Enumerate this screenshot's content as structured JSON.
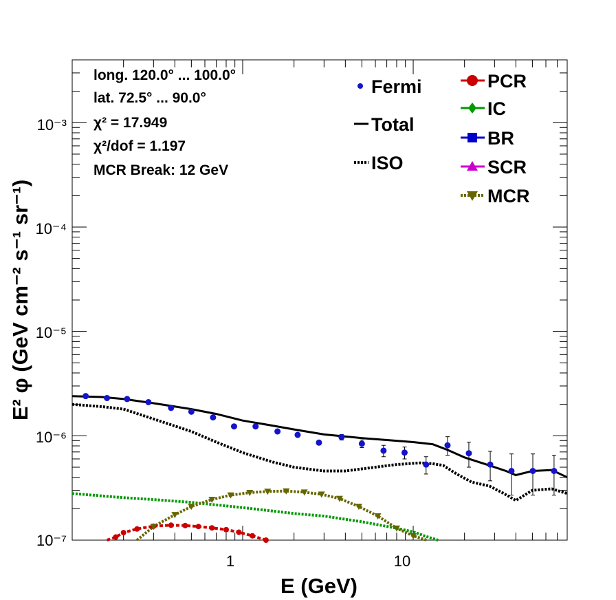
{
  "chart_data": {
    "type": "line",
    "xscale": "log",
    "yscale": "log",
    "xlim": [
      0.1,
      80
    ],
    "ylim": [
      1e-07,
      0.004
    ],
    "xlabel": "E (GeV)",
    "ylabel": "E² φ (GeV cm⁻² s⁻¹ sr⁻¹)",
    "x_tick_labels": [
      "1",
      "10"
    ],
    "y_tick_labels": [
      "10⁻⁷",
      "10⁻⁶",
      "10⁻⁵",
      "10⁻⁴",
      "10⁻³"
    ],
    "info_box": [
      "long. 120.0° ... 100.0°",
      "lat. 72.5° ... 90.0°",
      "χ² = 17.949",
      "χ²/dof = 1.197",
      "MCR Break: 12 GeV"
    ],
    "legend_left": [
      "Fermi",
      "Total",
      "ISO"
    ],
    "legend_right": [
      "PCR",
      "IC",
      "BR",
      "SCR",
      "MCR"
    ],
    "colors": {
      "fermi": "#1414cc",
      "total": "#000000",
      "iso": "#000000",
      "pcr": "#cc0000",
      "ic": "#009900",
      "br": "#0000cc",
      "scr": "#cc00cc",
      "mcr": "#666600"
    },
    "fermi": {
      "x": [
        0.12,
        0.16,
        0.21,
        0.28,
        0.38,
        0.5,
        0.67,
        0.89,
        1.19,
        1.6,
        2.1,
        2.8,
        3.8,
        5.0,
        6.7,
        8.9,
        11.9,
        15.9,
        21.2,
        28.3,
        37.7,
        50.3,
        67.0
      ],
      "y": [
        2.4e-06,
        2.3e-06,
        2.25e-06,
        2.1e-06,
        1.85e-06,
        1.7e-06,
        1.5e-06,
        1.23e-06,
        1.23e-06,
        1.1e-06,
        1.02e-06,
        8.6e-07,
        9.7e-07,
        8.4e-07,
        7.2e-07,
        6.9e-07,
        5.3e-07,
        8.1e-07,
        6.8e-07,
        5.3e-07,
        4.6e-07,
        4.6e-07,
        4.6e-07
      ],
      "err_low": [
        0,
        0,
        0,
        0,
        0,
        0,
        0,
        0,
        0,
        0,
        0,
        4e-08,
        6e-08,
        7e-08,
        9e-08,
        9e-08,
        1e-07,
        1.6e-07,
        1.8e-07,
        1.6e-07,
        1.9e-07,
        1.9e-07,
        1.9e-07
      ],
      "err_high": [
        0,
        0,
        0,
        0,
        0,
        0,
        0,
        0,
        0,
        0,
        0,
        4e-08,
        6e-08,
        7e-08,
        9e-08,
        9e-08,
        1e-07,
        1.7e-07,
        1.9e-07,
        1.8e-07,
        2.1e-07,
        2.1e-07,
        1.9e-07
      ]
    },
    "total": {
      "x": [
        0.1,
        0.15,
        0.2,
        0.3,
        0.5,
        0.7,
        1.0,
        1.5,
        2.0,
        3.0,
        5.0,
        7.0,
        10.0,
        13.0,
        16.0,
        20.0,
        28.0,
        35.0,
        40.0,
        50.0,
        65.0,
        80.0
      ],
      "y": [
        2.4e-06,
        2.35e-06,
        2.25e-06,
        2.05e-06,
        1.8e-06,
        1.62e-06,
        1.4e-06,
        1.25e-06,
        1.15e-06,
        1.03e-06,
        9.5e-07,
        9.1e-07,
        8.7e-07,
        8.3e-07,
        7.3e-07,
        6.2e-07,
        5.2e-07,
        4.6e-07,
        4.2e-07,
        4.6e-07,
        4.7e-07,
        4e-07
      ]
    },
    "iso": {
      "x": [
        0.1,
        0.15,
        0.2,
        0.3,
        0.5,
        0.7,
        1.0,
        1.5,
        2.0,
        3.0,
        4.0,
        6.0,
        8.0,
        11.0,
        13.0,
        15.0,
        18.0,
        22.0,
        28.0,
        34.0,
        40.0,
        50.0,
        65.0,
        80.0
      ],
      "y": [
        2e-06,
        1.9e-06,
        1.8e-06,
        1.45e-06,
        1.1e-06,
        8.7e-07,
        6.9e-07,
        5.6e-07,
        5e-07,
        4.6e-07,
        4.6e-07,
        5e-07,
        5.3e-07,
        5.5e-07,
        5.4e-07,
        5.2e-07,
        4.3e-07,
        3.6e-07,
        3.3e-07,
        2.8e-07,
        2.4e-07,
        3e-07,
        3.1e-07,
        2.8e-07
      ]
    },
    "ic": {
      "x": [
        0.1,
        0.2,
        0.3,
        0.5,
        1.0,
        2.0,
        3.0,
        5.0,
        8.0,
        10.0,
        12.0,
        14.0
      ],
      "y": [
        2.8e-07,
        2.55e-07,
        2.45e-07,
        2.3e-07,
        2.05e-07,
        1.8e-07,
        1.7e-07,
        1.5e-07,
        1.3e-07,
        1.2e-07,
        1.08e-07,
        1e-07
      ]
    },
    "pcr": {
      "x": [
        0.16,
        0.18,
        0.2,
        0.24,
        0.3,
        0.38,
        0.46,
        0.55,
        0.66,
        0.8,
        0.95,
        1.14,
        1.37
      ],
      "y": [
        1e-07,
        1.07e-07,
        1.18e-07,
        1.28e-07,
        1.36e-07,
        1.39e-07,
        1.38e-07,
        1.35e-07,
        1.31e-07,
        1.26e-07,
        1.19e-07,
        1.1e-07,
        1e-07
      ]
    },
    "mcr": {
      "x": [
        0.24,
        0.3,
        0.4,
        0.5,
        0.66,
        0.85,
        1.1,
        1.4,
        1.8,
        2.3,
        2.9,
        3.7,
        4.8,
        6.2,
        8.0,
        10.0,
        12.0
      ],
      "y": [
        1e-07,
        1.35e-07,
        1.75e-07,
        2.1e-07,
        2.45e-07,
        2.7e-07,
        2.85e-07,
        2.93e-07,
        2.95e-07,
        2.88e-07,
        2.75e-07,
        2.5e-07,
        2.1e-07,
        1.7e-07,
        1.3e-07,
        1.1e-07,
        1e-07
      ]
    }
  }
}
